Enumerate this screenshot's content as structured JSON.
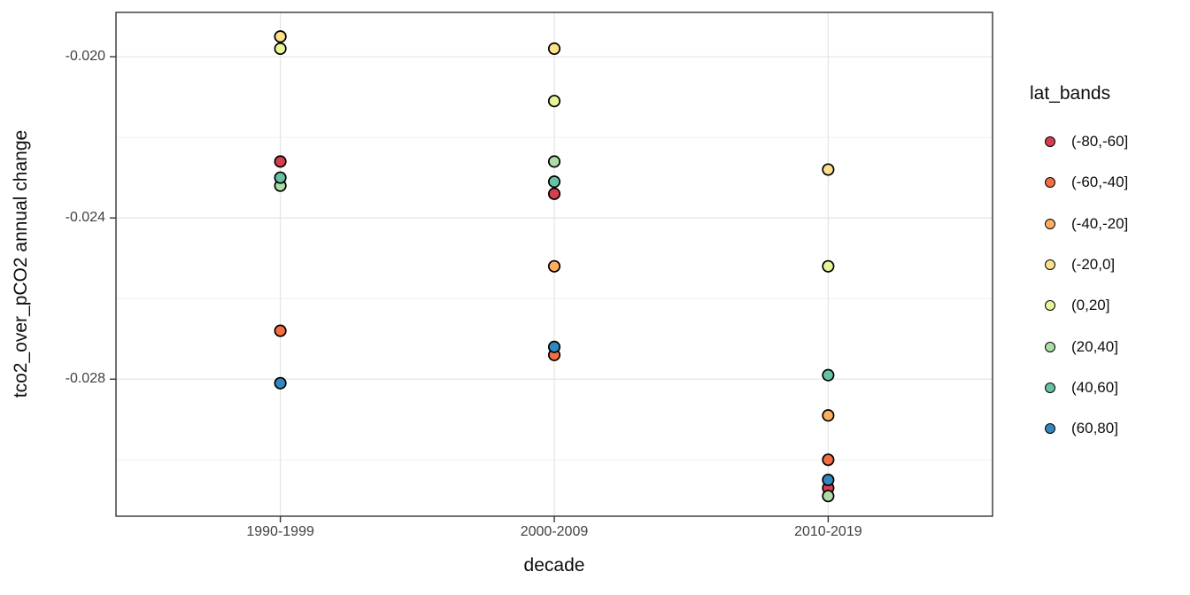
{
  "chart_data": {
    "type": "scatter",
    "title": "",
    "xlabel": "decade",
    "ylabel": "tco2_over_pCO2 annual change",
    "categories": [
      "1990-1999",
      "2000-2009",
      "2010-2019"
    ],
    "yticks": [
      {
        "value": -0.02,
        "label": "-0.020"
      },
      {
        "value": -0.024,
        "label": "-0.024"
      },
      {
        "value": -0.028,
        "label": "-0.028"
      }
    ],
    "minor_yticks": [
      -0.022,
      -0.026,
      -0.03
    ],
    "ylim": [
      -0.0314,
      -0.0189
    ],
    "grid": true,
    "legend_position": "right",
    "legend_title": "lat_bands",
    "series": [
      {
        "name": "(-80,-60]",
        "color": "#d53e4f",
        "values": [
          -0.0226,
          -0.0234,
          -0.0307
        ]
      },
      {
        "name": "(-60,-40]",
        "color": "#f46d43",
        "values": [
          -0.0268,
          -0.0274,
          -0.03
        ]
      },
      {
        "name": "(-40,-20]",
        "color": "#fdae61",
        "values": [
          -0.0195,
          -0.0252,
          -0.0289
        ]
      },
      {
        "name": "(-20,0]",
        "color": "#fee08b",
        "values": [
          -0.0195,
          -0.0198,
          -0.0228
        ]
      },
      {
        "name": "(0,20]",
        "color": "#e6f598",
        "values": [
          -0.0198,
          -0.0211,
          -0.0252
        ]
      },
      {
        "name": "(20,40]",
        "color": "#abdda4",
        "values": [
          -0.0232,
          -0.0226,
          -0.0309
        ]
      },
      {
        "name": "(40,60]",
        "color": "#66c2a5",
        "values": [
          -0.023,
          -0.0231,
          -0.0279
        ]
      },
      {
        "name": "(60,80]",
        "color": "#3288bd",
        "values": [
          -0.0281,
          -0.0272,
          -0.0305
        ]
      }
    ],
    "style": {
      "panel_border": "#333333",
      "tick_color": "#333333",
      "major_grid": "#e4e4e4",
      "minor_grid": "#f0f0f0",
      "point_stroke": "#000000"
    }
  }
}
